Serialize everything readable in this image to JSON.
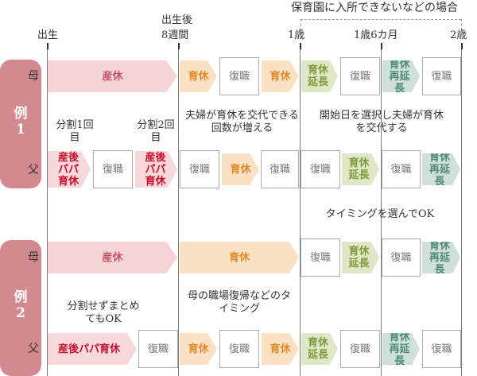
{
  "header": {
    "nursery_case": "保育園に入所できないなどの場合",
    "birth": "出生",
    "after_birth": "出生後",
    "eight_weeks": "8週間",
    "one_year": "1歳",
    "one_year_six_months": "1歳6カ月",
    "two_years": "2歳"
  },
  "row_labels": {
    "mother": "母",
    "father": "父"
  },
  "example1": {
    "badge_top": "例",
    "badge_bottom": "1",
    "mother": {
      "sankyu": "産休",
      "ikukyu_1": "育休",
      "fukushoku_1": "復職",
      "ikukyu_2": "育休",
      "extension": "育休延長",
      "fukushoku_2": "復職",
      "re_extension": "育休再延長",
      "fukushoku_3": "復職"
    },
    "father": {
      "split_first_note": "分割1回目",
      "split_second_note": "分割2回目",
      "papa_1": "産後パパ育休",
      "fukushoku_1": "復職",
      "papa_2": "産後パパ育休",
      "fukushoku_2": "復職",
      "ikukyu": "育休",
      "fukushoku_3": "復職",
      "fukushoku_4": "復職",
      "extension": "育休延長",
      "fukushoku_5": "復職",
      "re_extension": "育休再延長"
    },
    "note_swap_count": "夫婦が育休を交代できる回数が増える",
    "note_start_date": "開始日を選択し夫婦が育休を交代する",
    "note_timing_ok": "タイミングを選んでOK"
  },
  "example2": {
    "badge_top": "例",
    "badge_bottom": "2",
    "mother": {
      "sankyu": "産休",
      "ikukyu": "育休",
      "fukushoku_1": "復職",
      "extension": "育休延長",
      "fukushoku_2": "復職",
      "re_extension": "育休再延長"
    },
    "father": {
      "no_split_note": "分割せずまとめてもOK",
      "papa": "産後パパ育休",
      "fukushoku_1": "復職",
      "ikukyu_1": "育休",
      "fukushoku_2": "復職",
      "ikukyu_2": "育休",
      "extension": "育休延長",
      "fukushoku_3": "復職",
      "re_extension": "育休再延長",
      "fukushoku_4": "復職"
    },
    "note_timing": "母の職場復帰などのタイミング"
  },
  "colors": {
    "badge": "#d28a8f",
    "sankyu": "#f6d3d4",
    "ikukyu": "#fae1c4",
    "extension": "#dfe8c6",
    "re_extension": "#cfe0d8",
    "papa_text": "#c8102e"
  }
}
